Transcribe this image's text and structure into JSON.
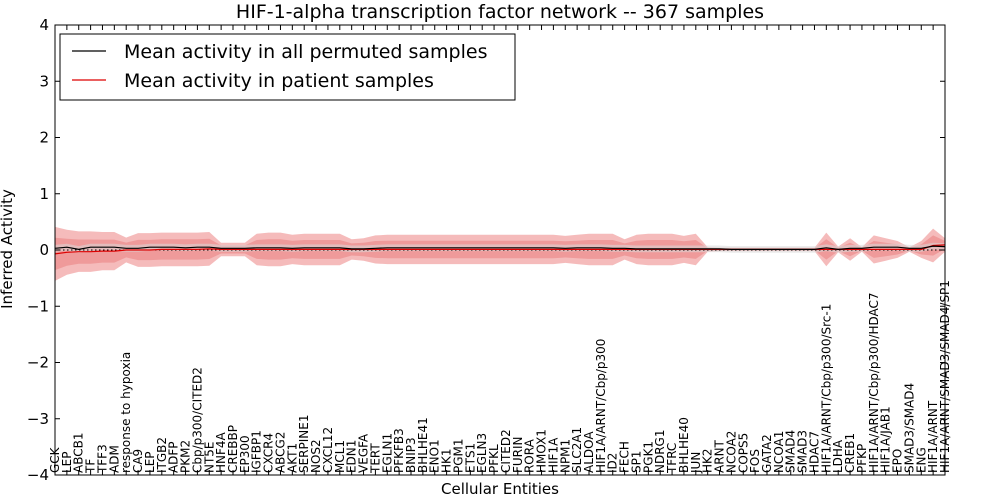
{
  "chart_data": {
    "type": "line",
    "title": "HIF-1-alpha transcription factor network -- 367 samples",
    "xlabel": "Cellular Entities",
    "ylabel": "Inferred Activity",
    "ylim": [
      -4,
      4
    ],
    "yticks": [
      -4,
      -3,
      -2,
      -1,
      0,
      1,
      2,
      3,
      4
    ],
    "ytick_labels": [
      "−4",
      "−3",
      "−2",
      "−1",
      "0",
      "1",
      "2",
      "3",
      "4"
    ],
    "legend_position": "upper-left",
    "colors": {
      "permuted_line": "#000000",
      "patient_line": "#dd0000",
      "patient_band_outer": "#f4b4b4",
      "patient_band_inner": "#ec8c8c",
      "permuted_band": "#d8d8d8"
    },
    "categories": [
      "GCK",
      "LEP",
      "ABCB1",
      "TF",
      "TFF3",
      "ADM",
      "response to hypoxia",
      "CA9",
      "LEP",
      "ITGB2",
      "ADFP",
      "PKM2",
      "Cbp/p300/CITED2",
      "NT5E",
      "HNF4A",
      "CREBBP",
      "EP300",
      "IGFBP1",
      "CXCR4",
      "ABCG2",
      "AKT1",
      "SERPINE1",
      "NOS2",
      "CXCL12",
      "MCL1",
      "EDN1",
      "VEGFA",
      "TERT",
      "EGLN1",
      "PFKFB3",
      "BNIP3",
      "BHLHE41",
      "ENO1",
      "HK1",
      "PGM1",
      "ETS1",
      "EGLN3",
      "PFKL",
      "CITED2",
      "FURIN",
      "RORA",
      "HMOX1",
      "HIF1A",
      "NPM1",
      "SLC2A1",
      "ALDOA",
      "HIF1A/ARNT/Cbp/p300",
      "ID2",
      "FECH",
      "SP1",
      "PGK1",
      "NDRG1",
      "TFRC",
      "BHLHE40",
      "JUN",
      "HK2",
      "ARNT",
      "NCOA2",
      "COPS5",
      "FOS",
      "GATA2",
      "NCOA1",
      "SMAD4",
      "SMAD3",
      "HDAC7",
      "HIF1A/ARNT/Cbp/p300/Src-1",
      "LDHA",
      "CREB1",
      "PFKP",
      "HIF1A/ARNT/Cbp/p300/HDAC7",
      "HIF1A/JAB1",
      "EPO",
      "SMAD3/SMAD4",
      "ENG",
      "HIF1A/ARNT",
      "HIF1A/ARNT/SMAD3/SMAD4/SP1"
    ],
    "series": [
      {
        "name": "Mean activity in all permuted samples",
        "values": [
          0.03,
          0.05,
          0.01,
          0.05,
          0.05,
          0.05,
          0.03,
          0.03,
          0.05,
          0.05,
          0.05,
          0.04,
          0.05,
          0.05,
          0.03,
          0.03,
          0.03,
          0.04,
          0.04,
          0.04,
          0.03,
          0.04,
          0.04,
          0.04,
          0.04,
          0.02,
          0.02,
          0.03,
          0.04,
          0.04,
          0.04,
          0.04,
          0.04,
          0.04,
          0.04,
          0.04,
          0.04,
          0.04,
          0.04,
          0.04,
          0.04,
          0.04,
          0.04,
          0.03,
          0.04,
          0.04,
          0.04,
          0.03,
          0.03,
          0.02,
          0.02,
          0.02,
          0.02,
          0.02,
          0.02,
          0.02,
          0.02,
          0.01,
          0.01,
          0.01,
          0.01,
          0.01,
          0.01,
          0.01,
          0.01,
          0.04,
          0.01,
          0.03,
          0.03,
          0.05,
          0.05,
          0.05,
          0.03,
          0.03,
          0.07,
          0.06
        ]
      },
      {
        "name": "Mean activity in patient samples",
        "values": [
          -0.07,
          -0.04,
          -0.03,
          -0.03,
          -0.02,
          -0.02,
          0.0,
          0.0,
          0.0,
          0.01,
          0.01,
          0.01,
          0.01,
          0.02,
          0.01,
          0.01,
          0.01,
          0.01,
          0.01,
          0.01,
          0.01,
          0.01,
          0.01,
          0.01,
          0.01,
          0.01,
          0.01,
          0.01,
          0.01,
          0.01,
          0.01,
          0.01,
          0.01,
          0.01,
          0.01,
          0.01,
          0.01,
          0.01,
          0.01,
          0.01,
          0.01,
          0.01,
          0.01,
          0.01,
          0.01,
          0.01,
          0.01,
          0.01,
          0.01,
          0.01,
          0.01,
          0.01,
          0.01,
          0.01,
          0.01,
          0.01,
          0.01,
          0.01,
          0.01,
          0.01,
          0.01,
          0.01,
          0.01,
          0.01,
          0.01,
          0.01,
          0.01,
          0.01,
          0.01,
          0.01,
          0.01,
          0.01,
          0.01,
          0.01,
          0.08,
          0.09
        ]
      }
    ],
    "patient_band_halfwidth": [
      0.48,
      0.4,
      0.36,
      0.36,
      0.34,
      0.34,
      0.22,
      0.3,
      0.3,
      0.3,
      0.3,
      0.3,
      0.3,
      0.3,
      0.12,
      0.12,
      0.12,
      0.28,
      0.3,
      0.3,
      0.26,
      0.28,
      0.28,
      0.28,
      0.28,
      0.18,
      0.2,
      0.25,
      0.26,
      0.26,
      0.26,
      0.26,
      0.26,
      0.26,
      0.26,
      0.26,
      0.26,
      0.26,
      0.26,
      0.26,
      0.26,
      0.26,
      0.26,
      0.24,
      0.26,
      0.28,
      0.28,
      0.28,
      0.18,
      0.26,
      0.28,
      0.28,
      0.28,
      0.24,
      0.28,
      0.04,
      0.03,
      0.03,
      0.03,
      0.03,
      0.03,
      0.03,
      0.03,
      0.03,
      0.03,
      0.3,
      0.05,
      0.2,
      0.04,
      0.25,
      0.2,
      0.15,
      0.04,
      0.15,
      0.3,
      0.12
    ],
    "permuted_band_halfwidth": 0.06
  },
  "legend": {
    "permuted_label": "Mean activity in all permuted samples",
    "patient_label": "Mean activity in patient samples"
  }
}
